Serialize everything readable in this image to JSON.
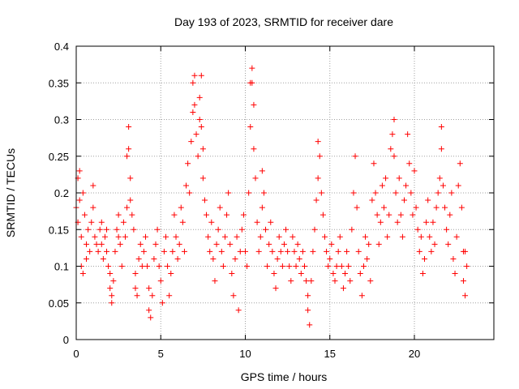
{
  "chart_data": {
    "type": "scatter",
    "title": "Day 193 of 2023, SRMTID for receiver dare",
    "xlabel": "GPS time / hours",
    "ylabel": "SRMTID / TECUs",
    "xlim": [
      0,
      24.7
    ],
    "ylim": [
      0,
      0.4
    ],
    "x_ticks": [
      0,
      5,
      10,
      15,
      20
    ],
    "x_tick_labels": [
      "0",
      "5",
      "10",
      "15",
      "20"
    ],
    "y_ticks": [
      0,
      0.05,
      0.1,
      0.15,
      0.2,
      0.25,
      0.3,
      0.35,
      0.4
    ],
    "y_tick_labels": [
      "0",
      "0.05",
      "0.1",
      "0.15",
      "0.2",
      "0.25",
      "0.3",
      "0.35",
      "0.4"
    ],
    "grid": true,
    "marker": "+",
    "color": "#ff0000",
    "series": [
      {
        "name": "SRMTID",
        "points": [
          [
            0.0,
            0.18
          ],
          [
            0.1,
            0.16
          ],
          [
            0.1,
            0.22
          ],
          [
            0.2,
            0.23
          ],
          [
            0.2,
            0.19
          ],
          [
            0.3,
            0.14
          ],
          [
            0.3,
            0.1
          ],
          [
            0.4,
            0.09
          ],
          [
            0.4,
            0.2
          ],
          [
            0.5,
            0.17
          ],
          [
            0.6,
            0.13
          ],
          [
            0.6,
            0.11
          ],
          [
            0.7,
            0.15
          ],
          [
            0.8,
            0.12
          ],
          [
            0.9,
            0.16
          ],
          [
            1.0,
            0.21
          ],
          [
            1.0,
            0.18
          ],
          [
            1.1,
            0.14
          ],
          [
            1.2,
            0.13
          ],
          [
            1.3,
            0.12
          ],
          [
            1.4,
            0.15
          ],
          [
            1.5,
            0.16
          ],
          [
            1.5,
            0.13
          ],
          [
            1.6,
            0.11
          ],
          [
            1.7,
            0.14
          ],
          [
            1.8,
            0.15
          ],
          [
            1.8,
            0.12
          ],
          [
            1.9,
            0.1
          ],
          [
            2.0,
            0.09
          ],
          [
            2.0,
            0.07
          ],
          [
            2.1,
            0.06
          ],
          [
            2.1,
            0.05
          ],
          [
            2.2,
            0.08
          ],
          [
            2.3,
            0.12
          ],
          [
            2.4,
            0.15
          ],
          [
            2.5,
            0.17
          ],
          [
            2.5,
            0.14
          ],
          [
            2.6,
            0.13
          ],
          [
            2.7,
            0.1
          ],
          [
            2.8,
            0.16
          ],
          [
            2.9,
            0.14
          ],
          [
            3.0,
            0.18
          ],
          [
            3.0,
            0.25
          ],
          [
            3.1,
            0.26
          ],
          [
            3.1,
            0.29
          ],
          [
            3.2,
            0.22
          ],
          [
            3.2,
            0.19
          ],
          [
            3.3,
            0.17
          ],
          [
            3.4,
            0.15
          ],
          [
            3.5,
            0.09
          ],
          [
            3.5,
            0.07
          ],
          [
            3.6,
            0.06
          ],
          [
            3.7,
            0.11
          ],
          [
            3.8,
            0.13
          ],
          [
            3.9,
            0.1
          ],
          [
            4.0,
            0.12
          ],
          [
            4.1,
            0.14
          ],
          [
            4.2,
            0.1
          ],
          [
            4.3,
            0.07
          ],
          [
            4.3,
            0.04
          ],
          [
            4.4,
            0.03
          ],
          [
            4.5,
            0.06
          ],
          [
            4.6,
            0.11
          ],
          [
            4.7,
            0.13
          ],
          [
            4.8,
            0.15
          ],
          [
            4.9,
            0.1
          ],
          [
            5.0,
            0.08
          ],
          [
            5.1,
            0.05
          ],
          [
            5.2,
            0.12
          ],
          [
            5.3,
            0.14
          ],
          [
            5.4,
            0.1
          ],
          [
            5.5,
            0.06
          ],
          [
            5.6,
            0.09
          ],
          [
            5.7,
            0.12
          ],
          [
            5.8,
            0.17
          ],
          [
            5.9,
            0.14
          ],
          [
            6.0,
            0.11
          ],
          [
            6.1,
            0.13
          ],
          [
            6.2,
            0.18
          ],
          [
            6.3,
            0.16
          ],
          [
            6.4,
            0.12
          ],
          [
            6.5,
            0.21
          ],
          [
            6.6,
            0.24
          ],
          [
            6.7,
            0.2
          ],
          [
            6.8,
            0.27
          ],
          [
            6.9,
            0.31
          ],
          [
            6.9,
            0.35
          ],
          [
            7.0,
            0.36
          ],
          [
            7.0,
            0.32
          ],
          [
            7.1,
            0.28
          ],
          [
            7.2,
            0.25
          ],
          [
            7.3,
            0.3
          ],
          [
            7.3,
            0.33
          ],
          [
            7.4,
            0.36
          ],
          [
            7.4,
            0.29
          ],
          [
            7.5,
            0.26
          ],
          [
            7.5,
            0.22
          ],
          [
            7.6,
            0.19
          ],
          [
            7.7,
            0.17
          ],
          [
            7.8,
            0.14
          ],
          [
            7.9,
            0.12
          ],
          [
            8.0,
            0.16
          ],
          [
            8.1,
            0.11
          ],
          [
            8.2,
            0.08
          ],
          [
            8.3,
            0.13
          ],
          [
            8.4,
            0.15
          ],
          [
            8.5,
            0.18
          ],
          [
            8.6,
            0.12
          ],
          [
            8.7,
            0.1
          ],
          [
            8.8,
            0.14
          ],
          [
            8.9,
            0.17
          ],
          [
            9.0,
            0.2
          ],
          [
            9.1,
            0.13
          ],
          [
            9.2,
            0.09
          ],
          [
            9.3,
            0.06
          ],
          [
            9.4,
            0.11
          ],
          [
            9.5,
            0.14
          ],
          [
            9.6,
            0.04
          ],
          [
            9.7,
            0.12
          ],
          [
            9.8,
            0.15
          ],
          [
            9.9,
            0.17
          ],
          [
            10.0,
            0.12
          ],
          [
            10.1,
            0.1
          ],
          [
            10.2,
            0.2
          ],
          [
            10.3,
            0.29
          ],
          [
            10.3,
            0.35
          ],
          [
            10.4,
            0.37
          ],
          [
            10.4,
            0.35
          ],
          [
            10.5,
            0.32
          ],
          [
            10.5,
            0.26
          ],
          [
            10.6,
            0.22
          ],
          [
            10.7,
            0.16
          ],
          [
            10.8,
            0.12
          ],
          [
            10.9,
            0.14
          ],
          [
            11.0,
            0.18
          ],
          [
            11.0,
            0.23
          ],
          [
            11.1,
            0.2
          ],
          [
            11.2,
            0.15
          ],
          [
            11.3,
            0.1
          ],
          [
            11.4,
            0.13
          ],
          [
            11.5,
            0.16
          ],
          [
            11.6,
            0.12
          ],
          [
            11.7,
            0.09
          ],
          [
            11.8,
            0.07
          ],
          [
            11.9,
            0.11
          ],
          [
            12.0,
            0.14
          ],
          [
            12.1,
            0.12
          ],
          [
            12.2,
            0.1
          ],
          [
            12.3,
            0.13
          ],
          [
            12.4,
            0.15
          ],
          [
            12.5,
            0.12
          ],
          [
            12.6,
            0.1
          ],
          [
            12.7,
            0.08
          ],
          [
            12.8,
            0.14
          ],
          [
            12.9,
            0.12
          ],
          [
            13.0,
            0.1
          ],
          [
            13.1,
            0.13
          ],
          [
            13.2,
            0.11
          ],
          [
            13.3,
            0.09
          ],
          [
            13.4,
            0.12
          ],
          [
            13.5,
            0.1
          ],
          [
            13.6,
            0.08
          ],
          [
            13.7,
            0.06
          ],
          [
            13.7,
            0.04
          ],
          [
            13.8,
            0.02
          ],
          [
            13.9,
            0.08
          ],
          [
            14.0,
            0.12
          ],
          [
            14.1,
            0.15
          ],
          [
            14.2,
            0.19
          ],
          [
            14.3,
            0.22
          ],
          [
            14.3,
            0.27
          ],
          [
            14.4,
            0.25
          ],
          [
            14.5,
            0.2
          ],
          [
            14.6,
            0.17
          ],
          [
            14.7,
            0.14
          ],
          [
            14.8,
            0.12
          ],
          [
            14.9,
            0.1
          ],
          [
            15.0,
            0.11
          ],
          [
            15.1,
            0.13
          ],
          [
            15.2,
            0.09
          ],
          [
            15.3,
            0.08
          ],
          [
            15.4,
            0.1
          ],
          [
            15.5,
            0.12
          ],
          [
            15.6,
            0.14
          ],
          [
            15.7,
            0.1
          ],
          [
            15.8,
            0.07
          ],
          [
            15.9,
            0.09
          ],
          [
            16.0,
            0.12
          ],
          [
            16.1,
            0.1
          ],
          [
            16.2,
            0.08
          ],
          [
            16.3,
            0.15
          ],
          [
            16.4,
            0.2
          ],
          [
            16.5,
            0.25
          ],
          [
            16.6,
            0.18
          ],
          [
            16.7,
            0.12
          ],
          [
            16.8,
            0.09
          ],
          [
            16.9,
            0.06
          ],
          [
            17.0,
            0.1
          ],
          [
            17.1,
            0.14
          ],
          [
            17.2,
            0.11
          ],
          [
            17.3,
            0.13
          ],
          [
            17.4,
            0.08
          ],
          [
            17.5,
            0.19
          ],
          [
            17.6,
            0.24
          ],
          [
            17.7,
            0.2
          ],
          [
            17.8,
            0.17
          ],
          [
            17.9,
            0.13
          ],
          [
            18.0,
            0.16
          ],
          [
            18.1,
            0.21
          ],
          [
            18.2,
            0.18
          ],
          [
            18.3,
            0.22
          ],
          [
            18.4,
            0.14
          ],
          [
            18.5,
            0.17
          ],
          [
            18.6,
            0.26
          ],
          [
            18.7,
            0.28
          ],
          [
            18.8,
            0.3
          ],
          [
            18.8,
            0.25
          ],
          [
            18.9,
            0.2
          ],
          [
            19.0,
            0.16
          ],
          [
            19.1,
            0.22
          ],
          [
            19.2,
            0.17
          ],
          [
            19.3,
            0.14
          ],
          [
            19.4,
            0.19
          ],
          [
            19.5,
            0.21
          ],
          [
            19.6,
            0.28
          ],
          [
            19.7,
            0.24
          ],
          [
            19.8,
            0.2
          ],
          [
            19.9,
            0.17
          ],
          [
            20.0,
            0.23
          ],
          [
            20.1,
            0.18
          ],
          [
            20.2,
            0.15
          ],
          [
            20.3,
            0.12
          ],
          [
            20.4,
            0.14
          ],
          [
            20.5,
            0.09
          ],
          [
            20.6,
            0.11
          ],
          [
            20.7,
            0.16
          ],
          [
            20.8,
            0.19
          ],
          [
            20.9,
            0.14
          ],
          [
            21.0,
            0.12
          ],
          [
            21.1,
            0.16
          ],
          [
            21.2,
            0.13
          ],
          [
            21.3,
            0.18
          ],
          [
            21.4,
            0.2
          ],
          [
            21.5,
            0.22
          ],
          [
            21.6,
            0.26
          ],
          [
            21.6,
            0.29
          ],
          [
            21.7,
            0.21
          ],
          [
            21.8,
            0.18
          ],
          [
            21.9,
            0.15
          ],
          [
            22.0,
            0.13
          ],
          [
            22.1,
            0.17
          ],
          [
            22.2,
            0.2
          ],
          [
            22.3,
            0.11
          ],
          [
            22.4,
            0.09
          ],
          [
            22.5,
            0.14
          ],
          [
            22.6,
            0.21
          ],
          [
            22.7,
            0.24
          ],
          [
            22.8,
            0.18
          ],
          [
            22.9,
            0.12
          ],
          [
            22.9,
            0.08
          ],
          [
            23.0,
            0.06
          ],
          [
            23.0,
            0.12
          ],
          [
            23.1,
            0.1
          ]
        ]
      }
    ]
  }
}
